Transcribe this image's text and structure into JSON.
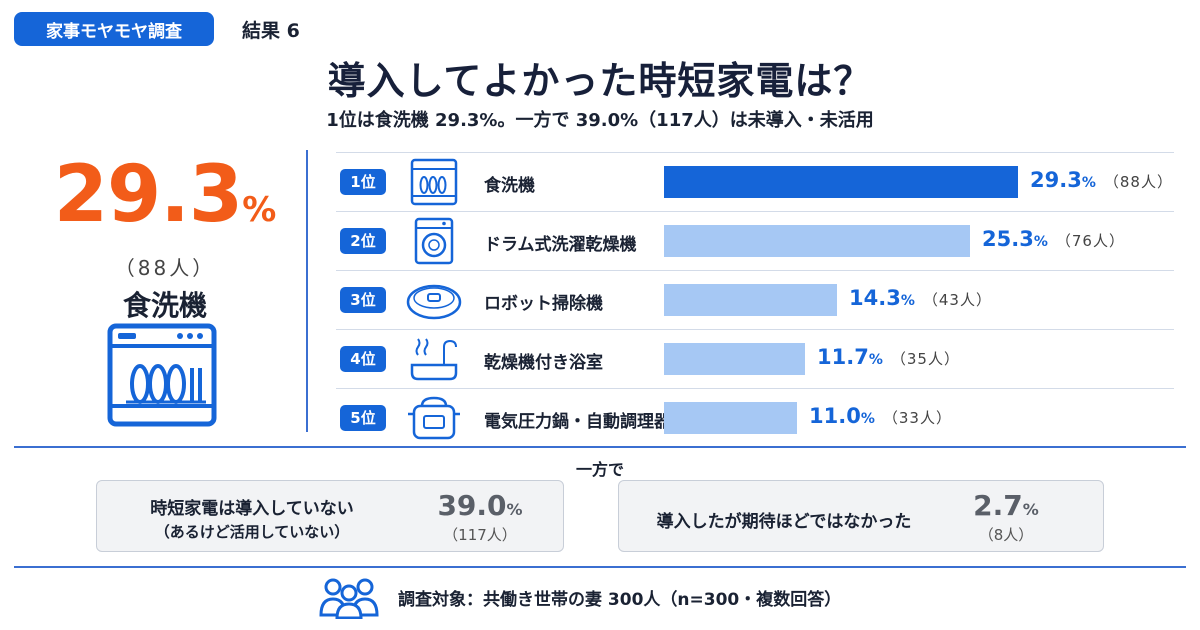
{
  "header": {
    "tag": "家事モヤモヤ調査",
    "result_label": "結果 6",
    "title": "導入してよかった時短家電は？",
    "subtitle": "1位は食洗機 29.3%。一方で 39.0%（117人）は未導入・未活用"
  },
  "highlight": {
    "value": "29.3",
    "unit": "%",
    "count": "（88人）",
    "name": "食洗機",
    "icon": "dishwasher-icon"
  },
  "colors": {
    "brand_blue": "#1565d8",
    "bar_top": "#1565d8",
    "bar_other": "#a6c8f4",
    "highlight_orange": "#f25c19"
  },
  "chart_data": {
    "type": "bar",
    "title": "導入してよかった時短家電は？",
    "categories": [
      "食洗機",
      "ドラム式洗濯乾燥機",
      "ロボット掃除機",
      "乾燥機付き浴室",
      "電気圧力鍋・自動調理器"
    ],
    "ranks": [
      "1位",
      "2位",
      "3位",
      "4位",
      "5位"
    ],
    "values": [
      29.3,
      25.3,
      14.3,
      11.7,
      11.0
    ],
    "value_labels": [
      "29.3",
      "25.3",
      "14.3",
      "11.7",
      "11.0"
    ],
    "percent_sign": "%",
    "counts": [
      "（88人）",
      "（76人）",
      "（43人）",
      "（35人）",
      "（33人）"
    ],
    "icons": [
      "dishwasher-icon",
      "washing-machine-icon",
      "robot-vacuum-icon",
      "bathroom-dryer-icon",
      "pressure-cooker-icon"
    ],
    "orientation": "horizontal",
    "xlim": [
      0,
      35
    ],
    "grid": false,
    "legend": "none"
  },
  "other": {
    "label": "一方で",
    "items": [
      {
        "text_line1": "時短家電は導入していない",
        "text_line2": "（あるけど活用していない）",
        "value": "39.0",
        "unit": "%",
        "count": "（117人）"
      },
      {
        "text_line1": "導入したが期待ほどではなかった",
        "text_line2": "",
        "value": "2.7",
        "unit": "%",
        "count": "（8人）"
      }
    ]
  },
  "footer": {
    "icon": "people-icon",
    "text": "調査対象：共働き世帯の妻 300人（n=300・複数回答）"
  }
}
